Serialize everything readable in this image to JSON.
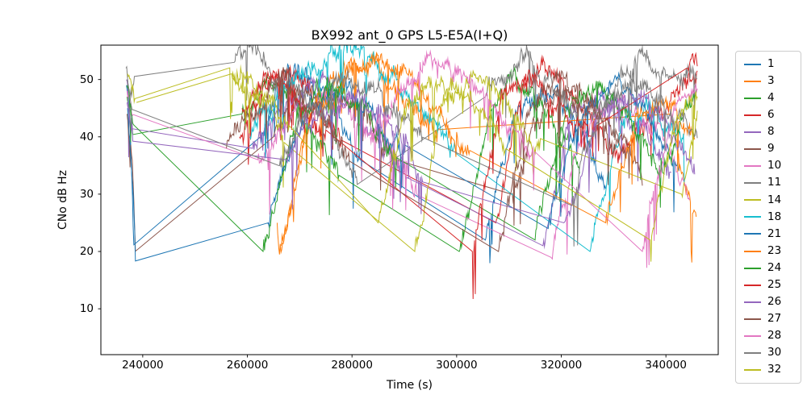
{
  "chart_data": {
    "type": "line",
    "title": "BX992 ant_0 GPS L5-E5A(I+Q)",
    "xlabel": "Time (s)",
    "ylabel": "CNo dB Hz",
    "xlim": [
      232000,
      350000
    ],
    "ylim": [
      2,
      56
    ],
    "xticks": [
      240000,
      260000,
      280000,
      300000,
      320000,
      340000
    ],
    "yticks": [
      10,
      20,
      30,
      40,
      50
    ],
    "grid": false,
    "legend_position": "right-outside",
    "spine_color": "#000000",
    "legend_edge_color": "#cccccc",
    "noise_amplitude_db": 1.8,
    "gap_threshold_s": 12000,
    "series": [
      {
        "name": "1",
        "color": "#1f77b4",
        "points": [
          [
            236900,
            49
          ],
          [
            237500,
            43
          ],
          [
            238300,
            20
          ],
          [
            262500,
            40
          ],
          [
            267000,
            49
          ],
          [
            271500,
            51
          ],
          [
            277000,
            44
          ],
          [
            281500,
            36
          ],
          [
            305500,
            22
          ],
          [
            311000,
            44
          ],
          [
            316500,
            48
          ],
          [
            322500,
            43
          ],
          [
            328500,
            31
          ]
        ]
      },
      {
        "name": "3",
        "color": "#ff7f0e",
        "points": [
          [
            265700,
            25
          ],
          [
            266000,
            19
          ],
          [
            272500,
            46
          ],
          [
            278000,
            51
          ],
          [
            281500,
            54
          ],
          [
            286000,
            52
          ],
          [
            291000,
            46
          ],
          [
            296500,
            39
          ],
          [
            341000,
            44
          ],
          [
            345800,
            26
          ]
        ]
      },
      {
        "name": "4",
        "color": "#2ca02c",
        "points": [
          [
            237000,
            47
          ],
          [
            238100,
            40
          ],
          [
            259000,
            44
          ],
          [
            263500,
            49
          ],
          [
            268000,
            46
          ],
          [
            273000,
            40
          ],
          [
            277500,
            33
          ],
          [
            300500,
            20
          ],
          [
            306500,
            45
          ],
          [
            311500,
            49
          ],
          [
            317500,
            44
          ],
          [
            323500,
            34
          ]
        ]
      },
      {
        "name": "6",
        "color": "#d62728",
        "points": [
          [
            258500,
            40
          ],
          [
            263000,
            48
          ],
          [
            267500,
            52
          ],
          [
            272500,
            48
          ],
          [
            278000,
            40
          ],
          [
            307500,
            25
          ],
          [
            312500,
            48
          ],
          [
            317500,
            52
          ],
          [
            323500,
            47
          ],
          [
            331000,
            38
          ],
          [
            340500,
            46
          ],
          [
            346000,
            52
          ]
        ]
      },
      {
        "name": "8",
        "color": "#9467bd",
        "points": [
          [
            236900,
            50
          ],
          [
            238000,
            43
          ],
          [
            261000,
            38
          ],
          [
            267000,
            45
          ],
          [
            273000,
            49
          ],
          [
            279500,
            45
          ],
          [
            286000,
            39
          ],
          [
            290500,
            33
          ],
          [
            316500,
            21
          ],
          [
            322000,
            44
          ],
          [
            328000,
            48
          ],
          [
            334500,
            43
          ],
          [
            341000,
            34
          ]
        ]
      },
      {
        "name": "9",
        "color": "#8c564b",
        "points": [
          [
            237000,
            44
          ],
          [
            238000,
            36
          ],
          [
            238600,
            19
          ],
          [
            265000,
            40
          ],
          [
            271000,
            46
          ],
          [
            276500,
            48
          ],
          [
            282500,
            43
          ],
          [
            288000,
            36
          ],
          [
            310500,
            30
          ],
          [
            316500,
            45
          ],
          [
            322500,
            49
          ],
          [
            329000,
            44
          ],
          [
            335500,
            34
          ]
        ]
      },
      {
        "name": "10",
        "color": "#e377c2",
        "points": [
          [
            237000,
            48
          ],
          [
            238200,
            41
          ],
          [
            262000,
            36
          ],
          [
            268500,
            44
          ],
          [
            274500,
            47
          ],
          [
            281000,
            43
          ],
          [
            287500,
            37
          ],
          [
            292500,
            31
          ],
          [
            318000,
            19
          ],
          [
            324500,
            43
          ],
          [
            331000,
            47
          ],
          [
            337500,
            42
          ],
          [
            344500,
            32
          ]
        ]
      },
      {
        "name": "11",
        "color": "#7f7f7f",
        "points": [
          [
            236800,
            52
          ],
          [
            237600,
            46
          ],
          [
            238400,
            50
          ],
          [
            257500,
            53
          ],
          [
            260000,
            55
          ],
          [
            264500,
            52
          ],
          [
            270500,
            47
          ],
          [
            276500,
            40
          ],
          [
            281000,
            33
          ],
          [
            305500,
            47
          ],
          [
            310500,
            53
          ],
          [
            313500,
            54
          ],
          [
            319000,
            49
          ],
          [
            325000,
            42
          ],
          [
            330500,
            49
          ],
          [
            335500,
            53
          ],
          [
            341500,
            49
          ],
          [
            346000,
            52
          ]
        ]
      },
      {
        "name": "14",
        "color": "#bcbd22",
        "points": [
          [
            237100,
            51
          ],
          [
            238500,
            45
          ],
          [
            256500,
            52
          ],
          [
            261500,
            49
          ],
          [
            267000,
            42
          ],
          [
            292000,
            20
          ],
          [
            297500,
            46
          ],
          [
            303000,
            51
          ],
          [
            309500,
            46
          ],
          [
            316000,
            38
          ],
          [
            343000,
            30
          ],
          [
            346000,
            45
          ]
        ]
      },
      {
        "name": "18",
        "color": "#17becf",
        "points": [
          [
            260500,
            40
          ],
          [
            266500,
            47
          ],
          [
            272500,
            52
          ],
          [
            278500,
            55
          ],
          [
            283000,
            54
          ],
          [
            288500,
            50
          ],
          [
            294000,
            44
          ],
          [
            300000,
            36
          ],
          [
            325500,
            20
          ],
          [
            331500,
            42
          ],
          [
            337500,
            46
          ],
          [
            343500,
            40
          ]
        ]
      },
      {
        "name": "21",
        "color": "#1f77b4",
        "points": [
          [
            237100,
            45
          ],
          [
            238600,
            22
          ],
          [
            264000,
            25
          ],
          [
            270500,
            43
          ],
          [
            277000,
            49
          ],
          [
            283500,
            45
          ],
          [
            290000,
            37
          ],
          [
            317500,
            24
          ],
          [
            324000,
            45
          ],
          [
            330000,
            49
          ],
          [
            336500,
            44
          ],
          [
            342500,
            35
          ]
        ]
      },
      {
        "name": "23",
        "color": "#ff7f0e",
        "points": [
          [
            266500,
            21
          ],
          [
            272000,
            43
          ],
          [
            279000,
            51
          ],
          [
            285500,
            54
          ],
          [
            291500,
            50
          ],
          [
            297500,
            43
          ],
          [
            302500,
            35
          ],
          [
            328500,
            25
          ],
          [
            334500,
            44
          ],
          [
            340000,
            48
          ],
          [
            345500,
            42
          ]
        ]
      },
      {
        "name": "24",
        "color": "#2ca02c",
        "points": [
          [
            237000,
            49
          ],
          [
            238200,
            43
          ],
          [
            263000,
            20
          ],
          [
            269500,
            43
          ],
          [
            275500,
            48
          ],
          [
            282000,
            44
          ],
          [
            288500,
            36
          ],
          [
            315000,
            22
          ],
          [
            321000,
            45
          ],
          [
            327000,
            49
          ],
          [
            333500,
            44
          ],
          [
            339500,
            35
          ],
          [
            345800,
            46
          ]
        ]
      },
      {
        "name": "25",
        "color": "#d62728",
        "points": [
          [
            259000,
            45
          ],
          [
            263500,
            50
          ],
          [
            269500,
            46
          ],
          [
            275000,
            38
          ],
          [
            303000,
            20
          ],
          [
            308500,
            47
          ],
          [
            313500,
            51
          ],
          [
            320000,
            46
          ],
          [
            326500,
            38
          ],
          [
            344000,
            52
          ],
          [
            346000,
            53
          ]
        ]
      },
      {
        "name": "26",
        "color": "#9467bd",
        "points": [
          [
            237000,
            46
          ],
          [
            238100,
            40
          ],
          [
            267500,
            36
          ],
          [
            273500,
            45
          ],
          [
            280000,
            48
          ],
          [
            287000,
            43
          ],
          [
            293500,
            35
          ],
          [
            320500,
            25
          ],
          [
            327000,
            44
          ],
          [
            333000,
            48
          ],
          [
            339500,
            43
          ],
          [
            345500,
            34
          ]
        ]
      },
      {
        "name": "27",
        "color": "#8c564b",
        "points": [
          [
            256000,
            38
          ],
          [
            261500,
            46
          ],
          [
            267000,
            50
          ],
          [
            273500,
            45
          ],
          [
            279500,
            37
          ],
          [
            308000,
            20
          ],
          [
            313500,
            44
          ],
          [
            319500,
            49
          ],
          [
            326000,
            44
          ],
          [
            332500,
            36
          ]
        ]
      },
      {
        "name": "28",
        "color": "#e377c2",
        "points": [
          [
            283500,
            40
          ],
          [
            290500,
            50
          ],
          [
            296500,
            54
          ],
          [
            302500,
            50
          ],
          [
            309500,
            43
          ],
          [
            315000,
            37
          ],
          [
            335500,
            20
          ],
          [
            341000,
            43
          ],
          [
            346000,
            47
          ]
        ]
      },
      {
        "name": "30",
        "color": "#7f7f7f",
        "points": [
          [
            237000,
            50
          ],
          [
            238100,
            44
          ],
          [
            266000,
            35
          ],
          [
            272500,
            45
          ],
          [
            279500,
            50
          ],
          [
            287000,
            46
          ],
          [
            293500,
            39
          ],
          [
            322000,
            28
          ],
          [
            328000,
            46
          ],
          [
            333500,
            50
          ],
          [
            340500,
            45
          ],
          [
            346000,
            40
          ]
        ]
      },
      {
        "name": "32",
        "color": "#bcbd22",
        "points": [
          [
            238800,
            46
          ],
          [
            257000,
            51
          ],
          [
            262500,
            48
          ],
          [
            268000,
            41
          ],
          [
            285000,
            25
          ],
          [
            291000,
            47
          ],
          [
            296500,
            51
          ],
          [
            303000,
            46
          ],
          [
            309500,
            39
          ],
          [
            337000,
            22
          ],
          [
            342500,
            46
          ],
          [
            346000,
            50
          ]
        ]
      }
    ]
  }
}
